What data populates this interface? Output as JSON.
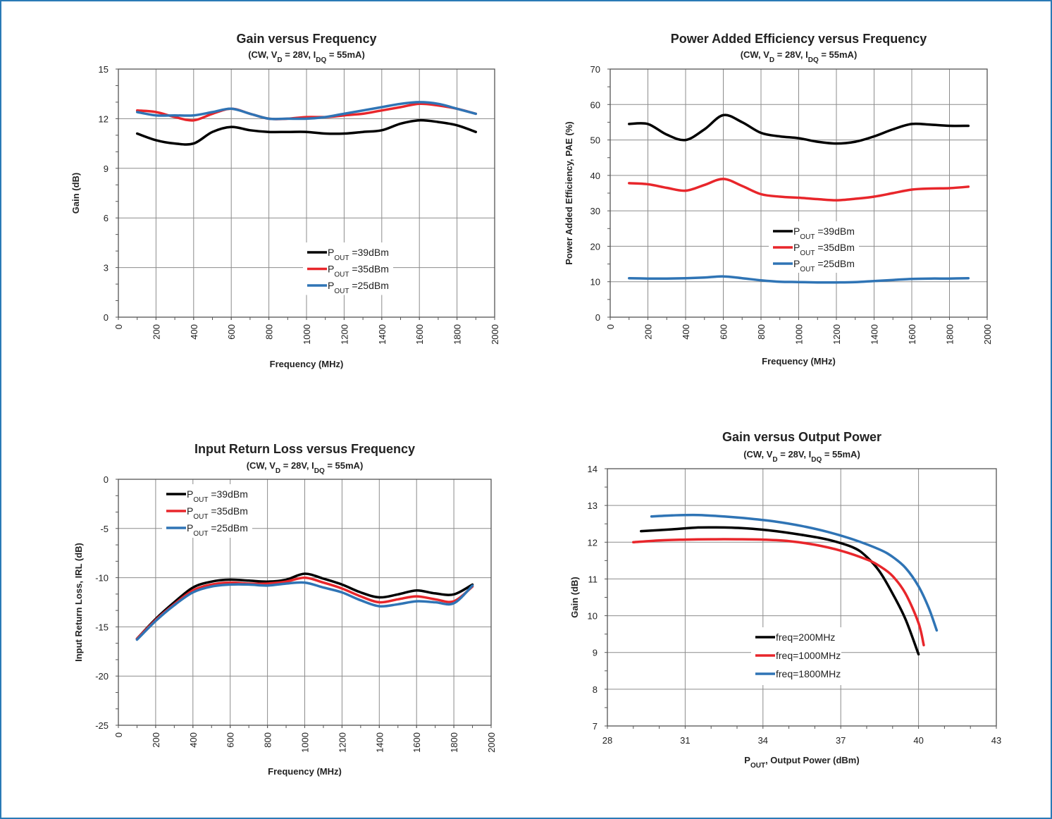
{
  "colors": {
    "black": "#000000",
    "red": "#e8262b",
    "blue": "#2f74b5",
    "grid": "#8c8c8c",
    "frame": "#2a7ab6"
  },
  "chart_data": [
    {
      "type": "line",
      "title": "Gain versus Frequency",
      "subtitle": {
        "pre": "(CW, V",
        "sub1": "D",
        "mid": " = 28V, I",
        "sub2": "DQ",
        "post": " = 55mA)"
      },
      "xlabel": "Frequency (MHz)",
      "ylabel": "Gain (dB)",
      "xlim": [
        0,
        2000
      ],
      "ylim": [
        0,
        15
      ],
      "xticks": [
        0,
        200,
        400,
        600,
        800,
        1000,
        1200,
        1400,
        1600,
        1800,
        2000
      ],
      "yticks": [
        0,
        3,
        6,
        9,
        12,
        15
      ],
      "x_tick_rotation": "vertical",
      "grid": true,
      "legend_position": "lower-center",
      "series": [
        {
          "name": {
            "pre": "P",
            "sub": "OUT",
            "post": " =39dBm"
          },
          "color": "black",
          "x": [
            100,
            200,
            300,
            400,
            500,
            600,
            700,
            800,
            900,
            1000,
            1100,
            1200,
            1300,
            1400,
            1500,
            1600,
            1700,
            1800,
            1900
          ],
          "y": [
            11.1,
            10.7,
            10.5,
            10.5,
            11.2,
            11.5,
            11.3,
            11.2,
            11.2,
            11.2,
            11.1,
            11.1,
            11.2,
            11.3,
            11.7,
            11.9,
            11.8,
            11.6,
            11.2
          ]
        },
        {
          "name": {
            "pre": "P",
            "sub": "OUT",
            "post": " =35dBm"
          },
          "color": "red",
          "x": [
            100,
            200,
            300,
            400,
            500,
            600,
            700,
            800,
            900,
            1000,
            1100,
            1200,
            1300,
            1400,
            1500,
            1600,
            1700,
            1800,
            1900
          ],
          "y": [
            12.5,
            12.4,
            12.1,
            11.9,
            12.3,
            12.6,
            12.3,
            12.0,
            12.0,
            12.1,
            12.1,
            12.2,
            12.3,
            12.5,
            12.7,
            12.9,
            12.8,
            12.6,
            12.3
          ]
        },
        {
          "name": {
            "pre": "P",
            "sub": "OUT",
            "post": " =25dBm"
          },
          "color": "blue",
          "x": [
            100,
            200,
            300,
            400,
            500,
            600,
            700,
            800,
            900,
            1000,
            1100,
            1200,
            1300,
            1400,
            1500,
            1600,
            1700,
            1800,
            1900
          ],
          "y": [
            12.4,
            12.2,
            12.2,
            12.2,
            12.4,
            12.6,
            12.3,
            12.0,
            12.0,
            12.0,
            12.1,
            12.3,
            12.5,
            12.7,
            12.9,
            13.0,
            12.9,
            12.6,
            12.3
          ]
        }
      ]
    },
    {
      "type": "line",
      "title": "Power Added Efficiency versus Frequency",
      "subtitle": {
        "pre": "(CW, V",
        "sub1": "D",
        "mid": " = 28V, I",
        "sub2": "DQ",
        "post": " = 55mA)"
      },
      "xlabel": "Frequency (MHz)",
      "ylabel": "Power Added Efficiency, PAE (%)",
      "xlim": [
        0,
        2000
      ],
      "ylim": [
        0,
        70
      ],
      "xticks": [
        0,
        200,
        400,
        600,
        800,
        1000,
        1200,
        1400,
        1600,
        1800,
        2000
      ],
      "yticks": [
        0,
        10,
        20,
        30,
        40,
        50,
        60,
        70
      ],
      "x_tick_rotation": "vertical",
      "grid": true,
      "legend_position": "center",
      "series": [
        {
          "name": {
            "pre": "P",
            "sub": "OUT",
            "post": " =39dBm"
          },
          "color": "black",
          "x": [
            100,
            200,
            300,
            400,
            500,
            600,
            700,
            800,
            900,
            1000,
            1100,
            1200,
            1300,
            1400,
            1500,
            1600,
            1700,
            1800,
            1900
          ],
          "y": [
            54.5,
            54.5,
            51.5,
            50.0,
            53.0,
            57.0,
            55.0,
            52.0,
            51.0,
            50.5,
            49.5,
            49.0,
            49.5,
            51.0,
            53.0,
            54.5,
            54.3,
            54.0,
            54.0
          ]
        },
        {
          "name": {
            "pre": "P",
            "sub": "OUT",
            "post": " =35dBm"
          },
          "color": "red",
          "x": [
            100,
            200,
            300,
            400,
            500,
            600,
            700,
            800,
            900,
            1000,
            1100,
            1200,
            1300,
            1400,
            1500,
            1600,
            1700,
            1800,
            1900
          ],
          "y": [
            37.8,
            37.5,
            36.5,
            35.7,
            37.3,
            39.0,
            37.0,
            34.7,
            34.0,
            33.7,
            33.3,
            33.0,
            33.4,
            34.0,
            35.0,
            36.0,
            36.3,
            36.4,
            36.8
          ]
        },
        {
          "name": {
            "pre": "P",
            "sub": "OUT",
            "post": " =25dBm"
          },
          "color": "blue",
          "x": [
            100,
            200,
            300,
            400,
            500,
            600,
            700,
            800,
            900,
            1000,
            1100,
            1200,
            1300,
            1400,
            1500,
            1600,
            1700,
            1800,
            1900
          ],
          "y": [
            11.0,
            10.9,
            10.9,
            11.0,
            11.2,
            11.5,
            11.0,
            10.4,
            10.0,
            9.9,
            9.8,
            9.8,
            9.9,
            10.2,
            10.5,
            10.8,
            10.9,
            10.9,
            11.0
          ]
        }
      ]
    },
    {
      "type": "line",
      "title": "Input Return Loss versus Frequency",
      "subtitle": {
        "pre": "(CW, V",
        "sub1": "D",
        "mid": " = 28V, I",
        "sub2": "DQ",
        "post": " = 55mA)"
      },
      "xlabel": "Frequency (MHz)",
      "ylabel": "Input Return Loss, IRL (dB)",
      "xlim": [
        0,
        2000
      ],
      "ylim": [
        -25,
        0
      ],
      "xticks": [
        0,
        200,
        400,
        600,
        800,
        1000,
        1200,
        1400,
        1600,
        1800,
        2000
      ],
      "yticks": [
        -25,
        -20,
        -15,
        -10,
        -5,
        0
      ],
      "x_tick_rotation": "vertical",
      "grid": true,
      "legend_position": "top-left",
      "series": [
        {
          "name": {
            "pre": "P",
            "sub": "OUT",
            "post": " =39dBm"
          },
          "color": "black",
          "x": [
            100,
            200,
            300,
            400,
            500,
            600,
            700,
            800,
            900,
            1000,
            1100,
            1200,
            1300,
            1400,
            1500,
            1600,
            1700,
            1800,
            1900
          ],
          "y": [
            -16.2,
            -14.2,
            -12.5,
            -11.0,
            -10.4,
            -10.2,
            -10.3,
            -10.4,
            -10.2,
            -9.6,
            -10.1,
            -10.7,
            -11.5,
            -12.0,
            -11.7,
            -11.3,
            -11.6,
            -11.7,
            -10.7
          ]
        },
        {
          "name": {
            "pre": "P",
            "sub": "OUT",
            "post": " =35dBm"
          },
          "color": "red",
          "x": [
            100,
            200,
            300,
            400,
            500,
            600,
            700,
            800,
            900,
            1000,
            1100,
            1200,
            1300,
            1400,
            1500,
            1600,
            1700,
            1800,
            1900
          ],
          "y": [
            -16.2,
            -14.3,
            -12.7,
            -11.3,
            -10.7,
            -10.5,
            -10.6,
            -10.6,
            -10.4,
            -10.0,
            -10.5,
            -11.1,
            -11.9,
            -12.5,
            -12.2,
            -11.9,
            -12.2,
            -12.4,
            -10.9
          ]
        },
        {
          "name": {
            "pre": "P",
            "sub": "OUT",
            "post": " =25dBm"
          },
          "color": "blue",
          "x": [
            100,
            200,
            300,
            400,
            500,
            600,
            700,
            800,
            900,
            1000,
            1100,
            1200,
            1300,
            1400,
            1500,
            1600,
            1700,
            1800,
            1900
          ],
          "y": [
            -16.3,
            -14.4,
            -12.8,
            -11.5,
            -10.9,
            -10.7,
            -10.7,
            -10.8,
            -10.6,
            -10.5,
            -11.0,
            -11.5,
            -12.3,
            -12.9,
            -12.7,
            -12.4,
            -12.5,
            -12.6,
            -10.8
          ]
        }
      ]
    },
    {
      "type": "line",
      "title": "Gain versus Output Power",
      "subtitle": {
        "pre": "(CW, V",
        "sub1": "D",
        "mid": " = 28V, I",
        "sub2": "DQ",
        "post": " = 55mA)"
      },
      "xlabel": {
        "pre": "P",
        "sub": "OUT",
        "post": ", Output Power (dBm)"
      },
      "ylabel": "Gain (dB)",
      "xlim": [
        28,
        43
      ],
      "ylim": [
        7,
        14
      ],
      "xticks": [
        28,
        31,
        34,
        37,
        40,
        43
      ],
      "xminor": [
        29,
        30,
        32,
        33,
        35,
        36,
        38,
        39,
        41,
        42
      ],
      "yticks": [
        7,
        8,
        9,
        10,
        11,
        12,
        13,
        14
      ],
      "x_tick_rotation": "horizontal",
      "grid": true,
      "legend_position": "lower-center",
      "series": [
        {
          "name": {
            "pre": "freq=200MHz",
            "sub": "",
            "post": ""
          },
          "color": "black",
          "x": [
            29.3,
            30.5,
            31.5,
            32.5,
            33.5,
            34.5,
            35.5,
            36.5,
            37.5,
            38.0,
            38.5,
            39.0,
            39.5,
            40.0
          ],
          "y": [
            12.3,
            12.35,
            12.4,
            12.4,
            12.37,
            12.3,
            12.2,
            12.07,
            11.85,
            11.6,
            11.2,
            10.6,
            9.9,
            8.95
          ]
        },
        {
          "name": {
            "pre": "freq=1000MHz",
            "sub": "",
            "post": ""
          },
          "color": "red",
          "x": [
            29.0,
            30.0,
            31.0,
            32.0,
            33.0,
            34.0,
            35.0,
            36.0,
            37.0,
            38.0,
            38.5,
            39.0,
            39.5,
            40.0,
            40.2
          ],
          "y": [
            12.0,
            12.05,
            12.07,
            12.08,
            12.08,
            12.07,
            12.03,
            11.93,
            11.77,
            11.53,
            11.35,
            11.08,
            10.6,
            9.8,
            9.2
          ]
        },
        {
          "name": {
            "pre": "freq=1800MHz",
            "sub": "",
            "post": ""
          },
          "color": "blue",
          "x": [
            29.7,
            30.5,
            31.5,
            32.5,
            33.5,
            34.5,
            35.5,
            36.5,
            37.5,
            38.5,
            39.0,
            39.5,
            40.0,
            40.4,
            40.7
          ],
          "y": [
            12.7,
            12.73,
            12.74,
            12.7,
            12.64,
            12.56,
            12.44,
            12.28,
            12.07,
            11.8,
            11.6,
            11.3,
            10.8,
            10.2,
            9.6
          ]
        }
      ]
    }
  ]
}
